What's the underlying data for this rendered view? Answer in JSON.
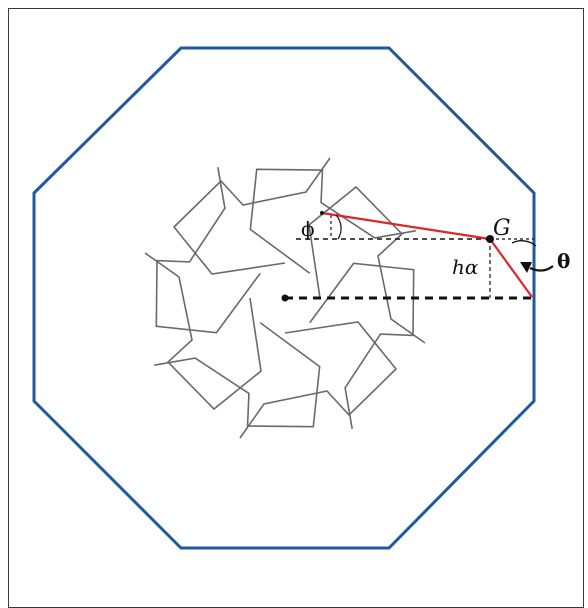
{
  "labels": {
    "phi": "ϕ",
    "g": "G",
    "h_alpha": "hα",
    "theta": "θ"
  },
  "colors": {
    "octagon": "#1f5aa0",
    "star": "#6a6a6a",
    "highlight": "#e0242a",
    "construction": "#111111"
  }
}
